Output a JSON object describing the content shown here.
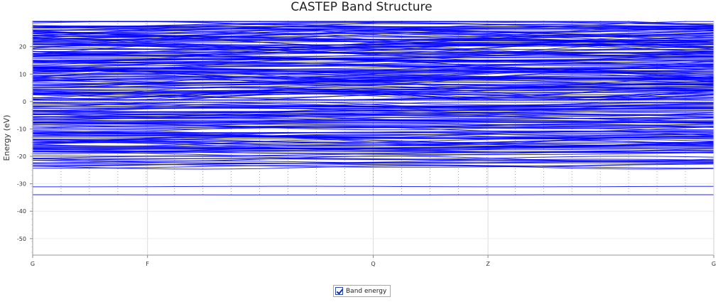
{
  "chart_data": {
    "type": "line",
    "title": "CASTEP Band Structure",
    "xlabel": "",
    "ylabel": "Energy (eV)",
    "ylim": [
      -56,
      29.5
    ],
    "yticks": [
      20,
      10,
      0,
      -10,
      -20,
      -30,
      -40,
      -50
    ],
    "kpath_labels": [
      {
        "label": "G",
        "k": 0.0
      },
      {
        "label": "F",
        "k": 0.1686
      },
      {
        "label": "Q",
        "k": 0.5
      },
      {
        "label": "Z",
        "k": 0.6685
      },
      {
        "label": "G",
        "k": 1.0
      }
    ],
    "fermi_level": 0,
    "series": [
      {
        "name": "Band energy",
        "color": "#0000ff"
      }
    ],
    "band_groups": [
      {
        "range": [
          -34,
          -34
        ],
        "count": 1,
        "dispersion": 0.1
      },
      {
        "range": [
          -31,
          -31
        ],
        "count": 1,
        "dispersion": 0.1
      },
      {
        "range": [
          -24,
          -20.5
        ],
        "count": 12,
        "dispersion": 1.0
      },
      {
        "range": [
          -19,
          -11
        ],
        "count": 40,
        "dispersion": 1.6
      },
      {
        "range": [
          -10,
          -0.3
        ],
        "count": 46,
        "dispersion": 1.4
      },
      {
        "range": [
          0.5,
          29
        ],
        "count": 150,
        "dispersion": 2.2
      }
    ],
    "grid": true,
    "legend_position": "bottom-center"
  },
  "legend": {
    "label": "Band energy",
    "checked": true
  }
}
